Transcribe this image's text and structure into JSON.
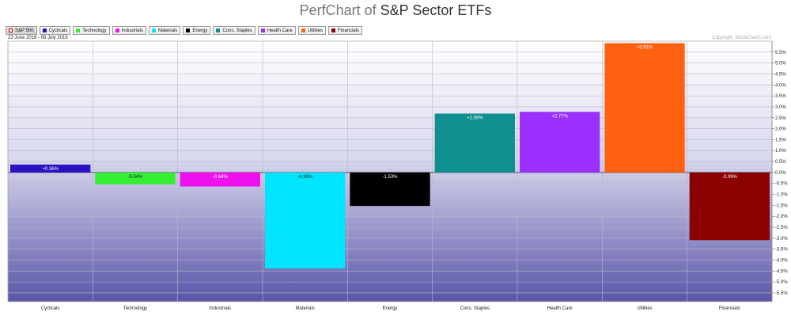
{
  "header": {
    "title_prefix": "PerfChart of ",
    "title_main": "S&P Sector ETFs"
  },
  "legend": {
    "items": [
      {
        "label": "S&P 500",
        "color": "#ffffff",
        "active": true
      },
      {
        "label": "Cyclicals",
        "color": "#2a10c0"
      },
      {
        "label": "Technology",
        "color": "#33ee33"
      },
      {
        "label": "Industrials",
        "color": "#ee11ee"
      },
      {
        "label": "Materials",
        "color": "#00e5ff"
      },
      {
        "label": "Energy",
        "color": "#000000"
      },
      {
        "label": "Cons. Staples",
        "color": "#0f8f8f"
      },
      {
        "label": "Health Care",
        "color": "#9b30ff"
      },
      {
        "label": "Utilities",
        "color": "#ff6111"
      },
      {
        "label": "Financials",
        "color": "#8b0000"
      }
    ]
  },
  "date_range": "23 June 2016 - 06 July 2016",
  "copyright": "Copyright, StockCharts.com",
  "chart_data": {
    "type": "bar",
    "categories": [
      "Cyclicals",
      "Technology",
      "Industrials",
      "Materials",
      "Energy",
      "Cons. Staples",
      "Health Care",
      "Utilities",
      "Financials"
    ],
    "values": [
      0.36,
      -0.54,
      -0.64,
      -4.39,
      -1.53,
      2.69,
      2.77,
      5.91,
      -3.09
    ],
    "data_labels": [
      "+0.36%",
      "-0.54%",
      "-0.64%",
      "-4.39%",
      "-1.53%",
      "+2.69%",
      "+2.77%",
      "+5.91%",
      "-3.09%"
    ],
    "colors": [
      "#2a10c0",
      "#33ee33",
      "#ee11ee",
      "#00e5ff",
      "#000000",
      "#0f8f8f",
      "#9b30ff",
      "#ff6111",
      "#8b0000"
    ],
    "ylim": [
      -5.9,
      6.0
    ],
    "yticks": [
      5.5,
      5.0,
      4.5,
      4.0,
      3.5,
      3.0,
      2.5,
      2.0,
      1.5,
      1.0,
      0.5,
      0.0,
      -0.5,
      -1.0,
      -1.5,
      -2.0,
      -2.5,
      -3.0,
      -3.5,
      -4.0,
      -4.5,
      -5.0,
      -5.5
    ],
    "ytick_labels": [
      "5.5%",
      "5.0%",
      "4.5%",
      "4.0%",
      "3.5%",
      "3.0%",
      "2.5%",
      "2.0%",
      "1.5%",
      "1.0%",
      "0.5%",
      "0.0%",
      "-0.5%",
      "-1.0%",
      "-1.5%",
      "-2.0%",
      "-2.5%",
      "-3.0%",
      "-3.5%",
      "-4.0%",
      "-4.5%",
      "-5.0%",
      "-5.5%"
    ],
    "grid": true,
    "legend_position": "top-left"
  }
}
